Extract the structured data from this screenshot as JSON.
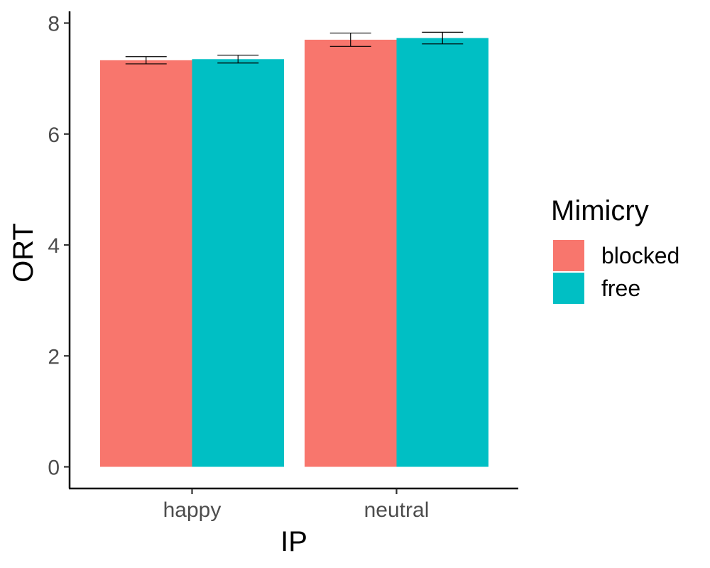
{
  "chart_data": {
    "type": "bar",
    "title": "",
    "xlabel": "IP",
    "ylabel": "ORT",
    "categories": [
      "happy",
      "neutral"
    ],
    "ylim": [
      0,
      8.2
    ],
    "yticks": [
      0,
      2,
      4,
      6,
      8
    ],
    "grid": false,
    "legend_title": "Mimicry",
    "legend_position": "right",
    "series": [
      {
        "name": "blocked",
        "color": "#F8766D",
        "values": [
          7.33,
          7.7
        ],
        "error": [
          0.065,
          0.12
        ]
      },
      {
        "name": "free",
        "color": "#00BFC4",
        "values": [
          7.35,
          7.73
        ],
        "error": [
          0.07,
          0.105
        ]
      }
    ]
  }
}
